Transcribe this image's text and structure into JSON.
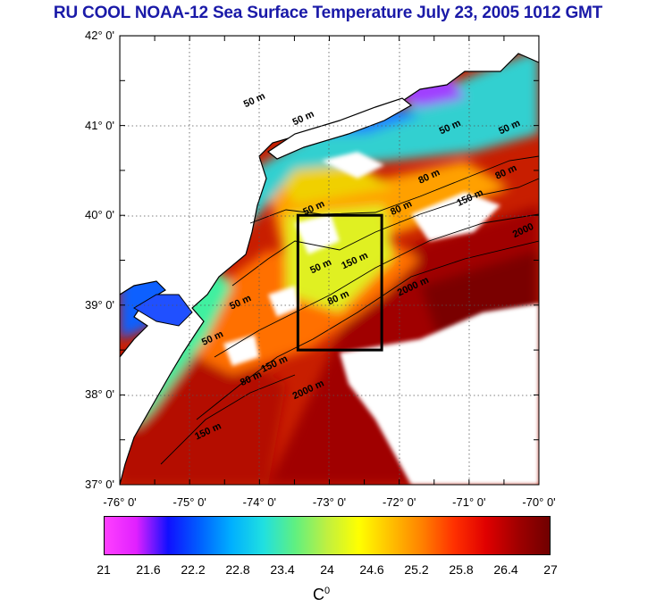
{
  "title": "RU COOL  NOAA-12 Sea Surface Temperature July 23, 2005 1012 GMT",
  "map": {
    "lat_range": [
      37,
      42
    ],
    "lon_range": [
      -76,
      -70
    ],
    "lat_labels": [
      "37° 0'",
      "38° 0'",
      "39° 0'",
      "40° 0'",
      "41° 0'",
      "42° 0'"
    ],
    "lon_labels": [
      "-76° 0'",
      "-75° 0'",
      "-74° 0'",
      "-73° 0'",
      "-72° 0'",
      "-71° 0'",
      "-70° 0'"
    ],
    "study_box": {
      "lon": [
        -73.45,
        -72.25
      ],
      "lat": [
        38.5,
        40.0
      ]
    },
    "colors": {
      "land": "#ffffff",
      "cloud": "#ffffff",
      "coast": "#000000",
      "grid": "#444444",
      "box": "#000000"
    },
    "isobath_labels": [
      {
        "text": "50 m",
        "lon": -74.2,
        "lat": 41.2
      },
      {
        "text": "50 m",
        "lon": -73.5,
        "lat": 41.0
      },
      {
        "text": "50 m",
        "lon": -71.4,
        "lat": 40.9
      },
      {
        "text": "50 m",
        "lon": -70.55,
        "lat": 40.9
      },
      {
        "text": "50 m",
        "lon": -73.35,
        "lat": 40.0
      },
      {
        "text": "80 m",
        "lon": -71.7,
        "lat": 40.35
      },
      {
        "text": "80 m",
        "lon": -70.6,
        "lat": 40.4
      },
      {
        "text": "80 m",
        "lon": -72.1,
        "lat": 40.0
      },
      {
        "text": "150 m",
        "lon": -71.15,
        "lat": 40.1
      },
      {
        "text": "2000",
        "lon": -70.35,
        "lat": 39.75
      },
      {
        "text": "150 m",
        "lon": -72.8,
        "lat": 39.4
      },
      {
        "text": "50 m",
        "lon": -73.25,
        "lat": 39.35
      },
      {
        "text": "80 m",
        "lon": -73.0,
        "lat": 39.0
      },
      {
        "text": "2000 m",
        "lon": -72.0,
        "lat": 39.1
      },
      {
        "text": "50 m",
        "lon": -74.4,
        "lat": 38.95
      },
      {
        "text": "50 m",
        "lon": -74.8,
        "lat": 38.55
      },
      {
        "text": "80 m",
        "lon": -74.25,
        "lat": 38.1
      },
      {
        "text": "150 m",
        "lon": -73.95,
        "lat": 38.25
      },
      {
        "text": "2000 m",
        "lon": -73.5,
        "lat": 37.95
      },
      {
        "text": "150 m",
        "lon": -74.9,
        "lat": 37.5
      }
    ]
  },
  "colorbar": {
    "ticks": [
      "21",
      "21.6",
      "22.2",
      "22.8",
      "23.4",
      "24",
      "24.6",
      "25.2",
      "25.8",
      "26.4",
      "27"
    ],
    "min": 21,
    "max": 27,
    "unit": "C",
    "unit_sup": "0",
    "stops": [
      "#ff40ff",
      "#e020ff",
      "#1010ff",
      "#0060ff",
      "#00b0ff",
      "#20e0e0",
      "#60f080",
      "#c0f040",
      "#ffff00",
      "#ffc000",
      "#ff8000",
      "#ff3000",
      "#e00000",
      "#a00000",
      "#700000"
    ]
  }
}
